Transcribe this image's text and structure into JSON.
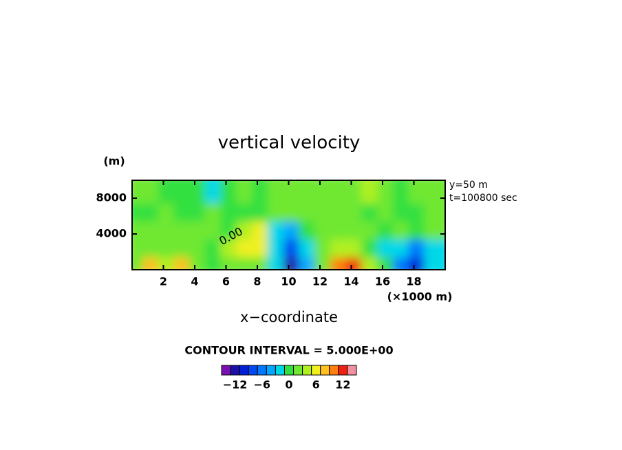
{
  "chart_data": {
    "type": "heatmap",
    "title": "vertical velocity",
    "y_unit": "(m)",
    "x_unit": "(×1000 m)",
    "x_label": "x−coordinate",
    "info": [
      "y=50 m",
      "t=100800 sec"
    ],
    "contour_label": "0.00",
    "contour_interval": "CONTOUR INTERVAL = 5.000E+00",
    "xlim": [
      0,
      20
    ],
    "xticks": [
      2,
      4,
      6,
      8,
      10,
      12,
      14,
      16,
      18
    ],
    "ylim": [
      0,
      10000
    ],
    "yticks": [
      4000,
      8000
    ],
    "x": [
      0.5,
      1.5,
      2.5,
      3.5,
      4.5,
      5.5,
      6.5,
      7.5,
      8.5,
      9.5,
      10.5,
      11.5,
      12.5,
      13.5,
      14.5,
      15.5,
      16.5,
      17.5,
      18.5,
      19.5
    ],
    "y": [
      1000,
      3000,
      5000,
      7000,
      9000
    ],
    "z": [
      [
        2,
        8,
        3,
        8,
        2,
        -1,
        1,
        2,
        1,
        -3,
        -12,
        -4,
        2,
        10,
        12,
        3,
        0,
        -6,
        -10,
        -3
      ],
      [
        1,
        2,
        1,
        1,
        1,
        0,
        4,
        6,
        6,
        -2,
        -8,
        -2,
        2,
        4,
        3,
        0,
        -2,
        -3,
        -6,
        -2
      ],
      [
        1,
        1,
        2,
        1,
        2,
        1,
        0,
        3,
        5,
        -2,
        -4,
        0,
        1,
        2,
        2,
        1,
        0,
        1,
        0,
        1
      ],
      [
        -1,
        0,
        1,
        0,
        0,
        1,
        0,
        -1,
        0,
        1,
        2,
        2,
        1,
        2,
        1,
        0,
        1,
        0,
        -1,
        1
      ],
      [
        1,
        1,
        0,
        0,
        -1,
        -3,
        0,
        1,
        0,
        1,
        2,
        1,
        1,
        2,
        1,
        4,
        1,
        0,
        1,
        2
      ]
    ],
    "colorbar": {
      "levels": [
        -15,
        -13,
        -11,
        -9,
        -7,
        -5,
        -3,
        -1,
        1,
        3,
        5,
        7,
        9,
        11,
        13,
        15
      ],
      "colors": [
        "#7a10b0",
        "#1a10a8",
        "#0020d8",
        "#0048f0",
        "#0078ff",
        "#00a8ff",
        "#00d8e8",
        "#30e040",
        "#70e830",
        "#b0f020",
        "#f0f020",
        "#ffc020",
        "#ff8010",
        "#f02010",
        "#f090a0"
      ],
      "ticks": [
        {
          "value": -12,
          "label": "−12"
        },
        {
          "value": -6,
          "label": "−6"
        },
        0,
        6,
        12
      ]
    }
  }
}
